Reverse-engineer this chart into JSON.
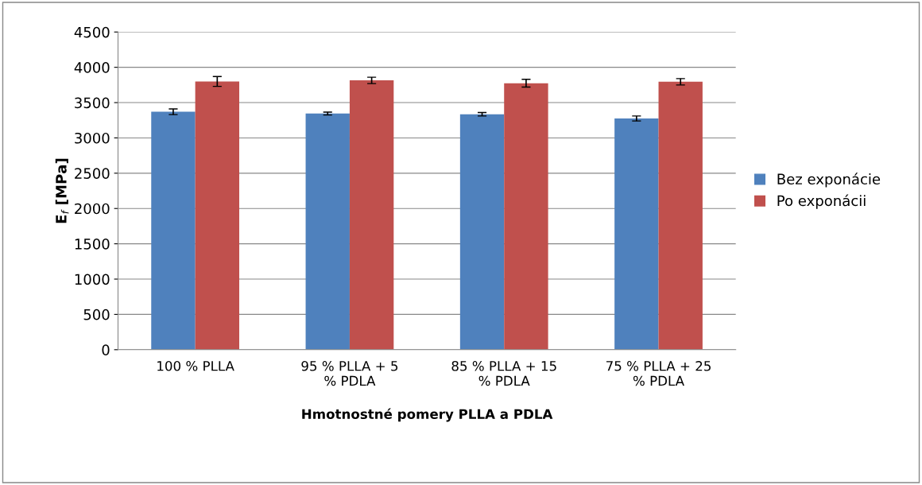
{
  "chart_data": {
    "type": "bar",
    "xlabel": "Hmotnostné pomery PLLA a PDLA",
    "ylabel": "E$_{f}$ [MPa]",
    "categories": [
      "100 % PLLA",
      "95 % PLLA + 5\n% PDLA",
      "85 % PLLA + 15\n% PDLA",
      "75 % PLLA + 25\n% PDLA"
    ],
    "series": [
      {
        "name": "Bez exponácie",
        "color": "#4f81bd",
        "values": [
          3370,
          3345,
          3335,
          3275
        ],
        "errors": [
          40,
          20,
          25,
          35
        ]
      },
      {
        "name": "Po exponácii",
        "color": "#c0504d",
        "values": [
          3800,
          3815,
          3775,
          3795
        ],
        "errors": [
          70,
          45,
          55,
          45
        ]
      }
    ],
    "ylim": [
      0,
      4500
    ],
    "yticks": [
      0,
      500,
      1000,
      1500,
      2000,
      2500,
      3000,
      3500,
      4000,
      4500
    ],
    "grid": "y",
    "legend": "right"
  }
}
